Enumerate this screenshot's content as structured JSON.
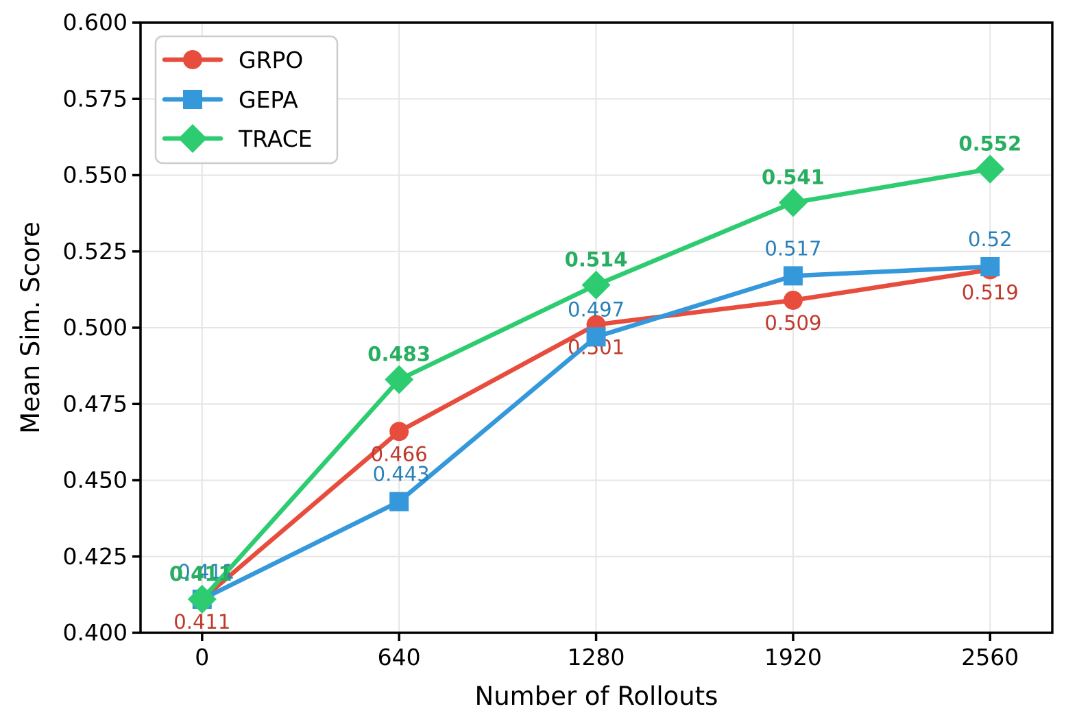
{
  "chart_data": {
    "type": "line",
    "title": "",
    "xlabel": "Number of Rollouts",
    "ylabel": "Mean Sim. Score",
    "x": [
      0,
      640,
      1280,
      1920,
      2560
    ],
    "xtick_labels": [
      "0",
      "640",
      "1280",
      "1920",
      "2560"
    ],
    "ytick_values": [
      0.4,
      0.425,
      0.45,
      0.475,
      0.5,
      0.525,
      0.55,
      0.575,
      0.6
    ],
    "ytick_labels": [
      "0.400",
      "0.425",
      "0.450",
      "0.475",
      "0.500",
      "0.525",
      "0.550",
      "0.575",
      "0.600"
    ],
    "xlim": [
      -200,
      2762
    ],
    "ylim": [
      0.4,
      0.6
    ],
    "grid": true,
    "legend": {
      "position": "upper-left",
      "entries": [
        "GRPO",
        "GEPA",
        "TRACE"
      ]
    },
    "series": [
      {
        "name": "GRPO",
        "marker": "circle",
        "color": "#e74c3c",
        "label_color": "#c0392b",
        "label_bold": false,
        "values": [
          0.411,
          0.466,
          0.501,
          0.509,
          0.519
        ],
        "point_labels": [
          "0.411",
          "0.466",
          "0.501",
          "0.509",
          "0.519"
        ],
        "label_dy": 33,
        "label_dx": [
          0,
          0,
          0,
          0,
          0
        ]
      },
      {
        "name": "GEPA",
        "marker": "square",
        "color": "#3498db",
        "label_color": "#2980b9",
        "label_bold": false,
        "values": [
          0.411,
          0.443,
          0.497,
          0.517,
          0.52
        ],
        "point_labels": [
          "0.411",
          "0.443",
          "0.497",
          "0.517",
          "0.52"
        ],
        "label_dy": -40,
        "label_dx": [
          6,
          3,
          0,
          0,
          0
        ]
      },
      {
        "name": "TRACE",
        "marker": "diamond",
        "color": "#2ecc71",
        "label_color": "#27ae60",
        "label_bold": true,
        "values": [
          0.411,
          0.483,
          0.514,
          0.541,
          0.552
        ],
        "point_labels": [
          "0.411",
          "0.483",
          "0.514",
          "0.541",
          "0.552"
        ],
        "label_dy": -37,
        "label_dx": [
          -2,
          0,
          0,
          0,
          0
        ]
      }
    ],
    "colors": {
      "grid": "#e5e5e5",
      "spine": "#000000",
      "tick_label": "#000000",
      "axis_label": "#000000",
      "legend_border": "#cccccc",
      "legend_bg": "#ffffff"
    }
  }
}
